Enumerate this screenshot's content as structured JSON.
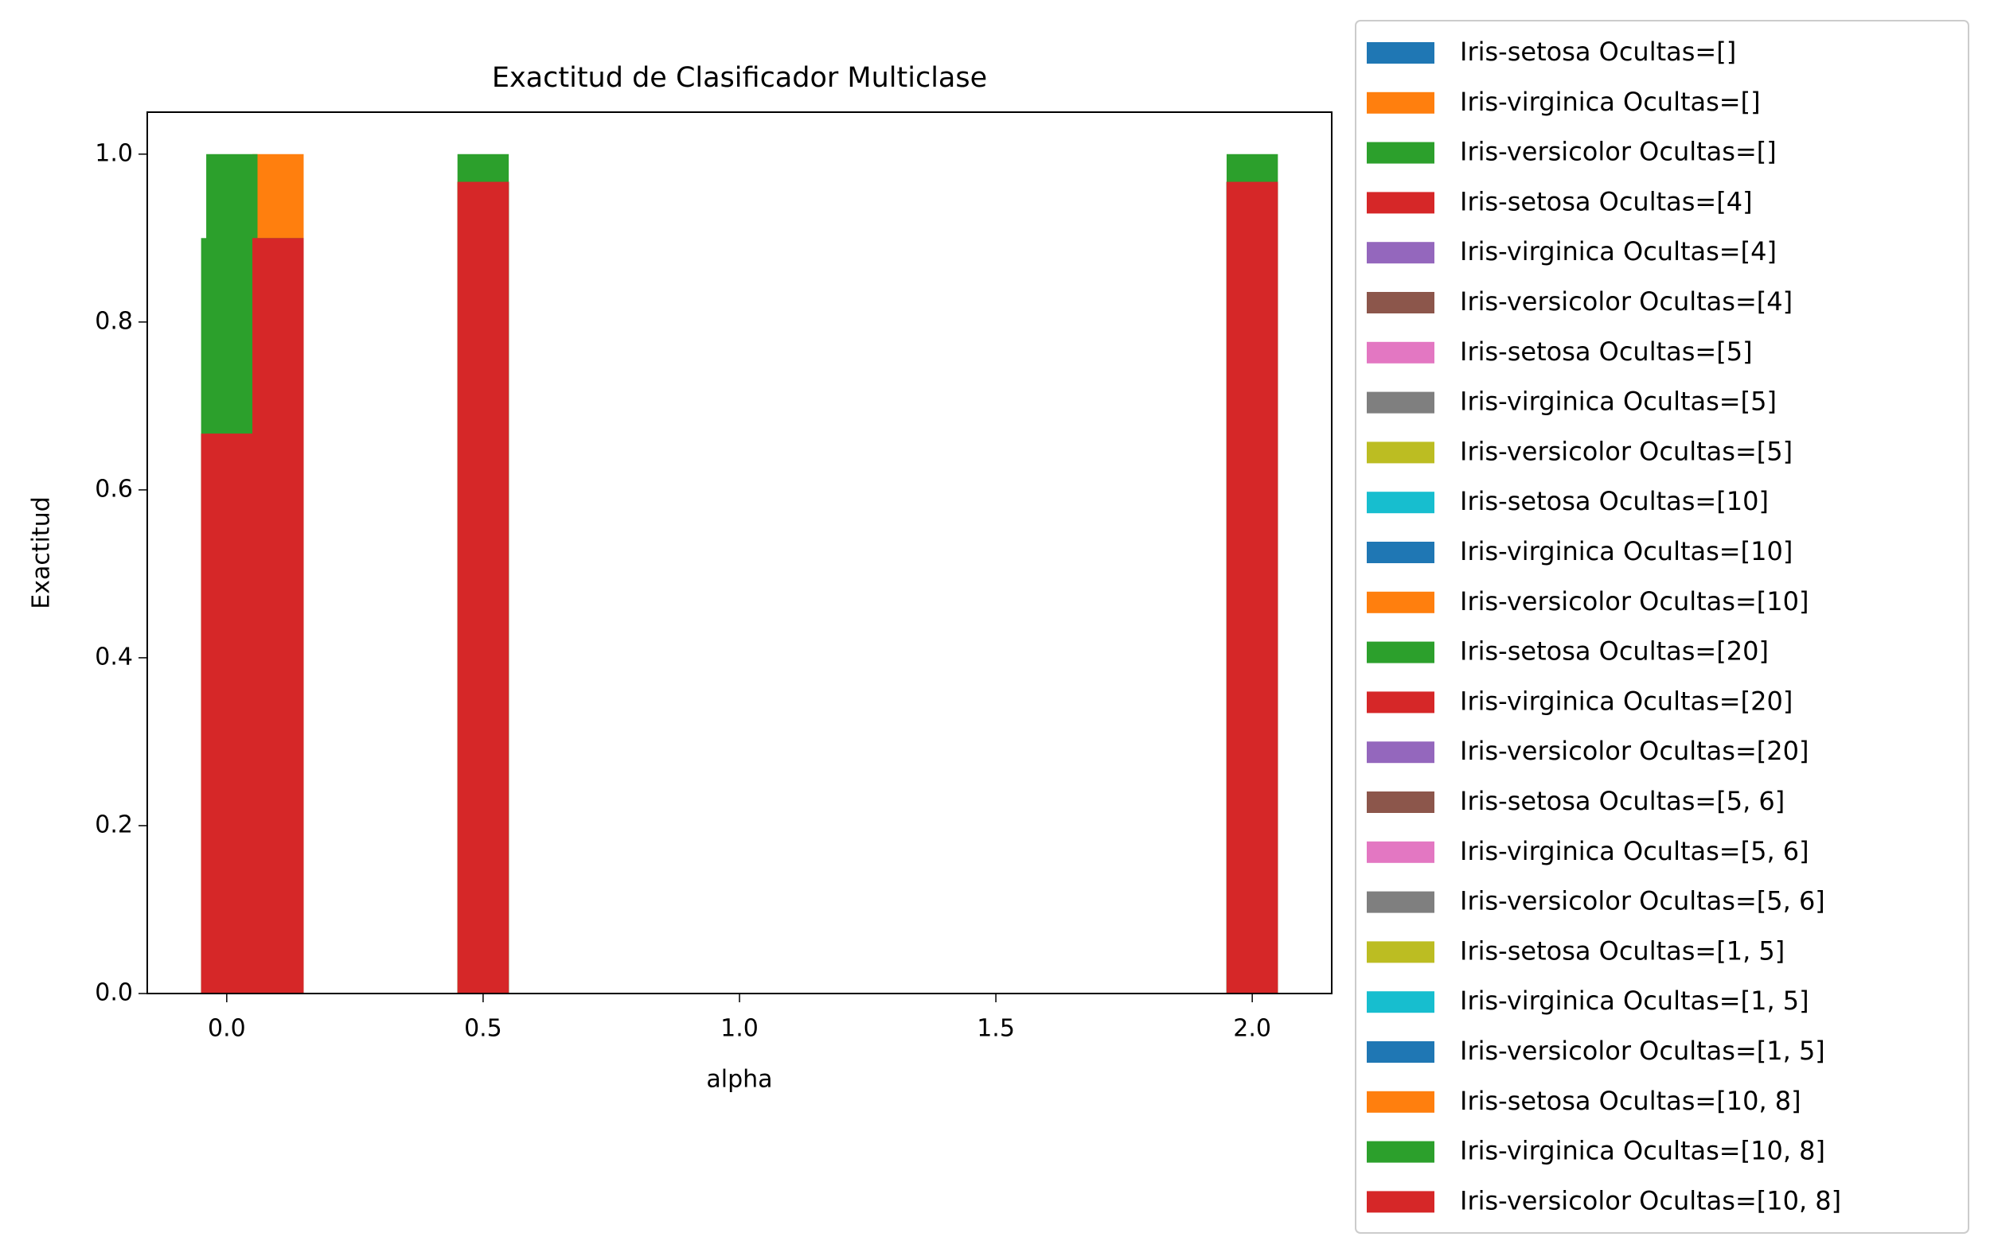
{
  "chart_data": {
    "type": "bar",
    "title": "Exactitud de Clasificador Multiclase",
    "xlabel": "alpha",
    "ylabel": "Exactitud",
    "x": [
      0.0,
      0.01,
      0.1,
      0.5,
      2.0
    ],
    "xlim": [
      -0.155,
      2.155
    ],
    "xticks": [
      {
        "value": 0,
        "label": "0.0"
      },
      0.5,
      {
        "value": 1,
        "label": "1.0"
      },
      1.5,
      {
        "value": 2,
        "label": "2.0"
      }
    ],
    "ylim": [
      0,
      1.05
    ],
    "yticks": [
      {
        "value": 0,
        "label": "0.0"
      },
      0.2,
      0.4,
      0.6,
      0.8,
      {
        "value": 1,
        "label": "1.0"
      }
    ],
    "legend": "outside right",
    "series": [
      {
        "name": "Iris-setosa Ocultas=[]",
        "color": "#1f77b4",
        "values": [
          0.667,
          0.667,
          0.9,
          0.967,
          0.967
        ]
      },
      {
        "name": "Iris-virginica Ocultas=[]",
        "color": "#ff7f0e",
        "values": [
          0.667,
          0.667,
          0.9,
          0.967,
          0.967
        ]
      },
      {
        "name": "Iris-versicolor Ocultas=[]",
        "color": "#2ca02c",
        "values": [
          0.667,
          0.667,
          0.9,
          0.967,
          0.967
        ]
      },
      {
        "name": "Iris-setosa Ocultas=[4]",
        "color": "#d62728",
        "values": [
          0.667,
          0.667,
          0.9,
          0.967,
          0.967
        ]
      },
      {
        "name": "Iris-virginica Ocultas=[4]",
        "color": "#9467bd",
        "values": [
          0.667,
          0.667,
          0.9,
          0.967,
          0.967
        ]
      },
      {
        "name": "Iris-versicolor Ocultas=[4]",
        "color": "#8c564b",
        "values": [
          0.667,
          0.667,
          0.9,
          0.967,
          0.967
        ]
      },
      {
        "name": "Iris-setosa Ocultas=[5]",
        "color": "#e377c2",
        "values": [
          0.667,
          0.667,
          0.9,
          0.967,
          0.967
        ]
      },
      {
        "name": "Iris-virginica Ocultas=[5]",
        "color": "#7f7f7f",
        "values": [
          0.667,
          0.667,
          0.9,
          0.967,
          0.967
        ]
      },
      {
        "name": "Iris-versicolor Ocultas=[5]",
        "color": "#bcbd22",
        "values": [
          0.667,
          0.667,
          0.9,
          0.967,
          0.967
        ]
      },
      {
        "name": "Iris-setosa Ocultas=[10]",
        "color": "#17becf",
        "values": [
          0.667,
          0.667,
          0.9,
          0.967,
          0.967
        ]
      },
      {
        "name": "Iris-virginica Ocultas=[10]",
        "color": "#1f77b4",
        "values": [
          0.667,
          0.667,
          0.9,
          0.967,
          0.967
        ]
      },
      {
        "name": "Iris-versicolor Ocultas=[10]",
        "color": "#ff7f0e",
        "values": [
          0.667,
          0.667,
          0.9,
          0.967,
          0.967
        ]
      },
      {
        "name": "Iris-setosa Ocultas=[20]",
        "color": "#2ca02c",
        "values": [
          0.667,
          0.667,
          0.9,
          0.967,
          0.967
        ]
      },
      {
        "name": "Iris-virginica Ocultas=[20]",
        "color": "#d62728",
        "values": [
          0.667,
          0.667,
          0.9,
          0.967,
          0.967
        ]
      },
      {
        "name": "Iris-versicolor Ocultas=[20]",
        "color": "#9467bd",
        "values": [
          0.667,
          0.667,
          0.9,
          0.967,
          0.967
        ]
      },
      {
        "name": "Iris-setosa Ocultas=[5, 6]",
        "color": "#8c564b",
        "values": [
          0.667,
          0.667,
          0.9,
          0.967,
          0.967
        ]
      },
      {
        "name": "Iris-virginica Ocultas=[5, 6]",
        "color": "#e377c2",
        "values": [
          0.667,
          0.667,
          0.9,
          0.967,
          0.967
        ]
      },
      {
        "name": "Iris-versicolor Ocultas=[5, 6]",
        "color": "#7f7f7f",
        "values": [
          0.667,
          0.667,
          0.9,
          0.967,
          0.967
        ]
      },
      {
        "name": "Iris-setosa Ocultas=[1, 5]",
        "color": "#bcbd22",
        "values": [
          0.667,
          0.667,
          0.9,
          0.967,
          0.967
        ]
      },
      {
        "name": "Iris-virginica Ocultas=[1, 5]",
        "color": "#17becf",
        "values": [
          0.667,
          0.667,
          0.9,
          0.967,
          0.967
        ]
      },
      {
        "name": "Iris-versicolor Ocultas=[1, 5]",
        "color": "#1f77b4",
        "values": [
          0.667,
          0.667,
          0.9,
          0.967,
          0.967
        ]
      },
      {
        "name": "Iris-setosa Ocultas=[10, 8]",
        "color": "#ff7f0e",
        "values": [
          0.667,
          0.667,
          1.0,
          0.967,
          0.967
        ]
      },
      {
        "name": "Iris-virginica Ocultas=[10, 8]",
        "color": "#2ca02c",
        "values": [
          0.9,
          1.0,
          0.9,
          1.0,
          1.0
        ]
      },
      {
        "name": "Iris-versicolor Ocultas=[10, 8]",
        "color": "#d62728",
        "values": [
          0.667,
          0.667,
          0.9,
          0.967,
          0.967
        ]
      }
    ]
  }
}
